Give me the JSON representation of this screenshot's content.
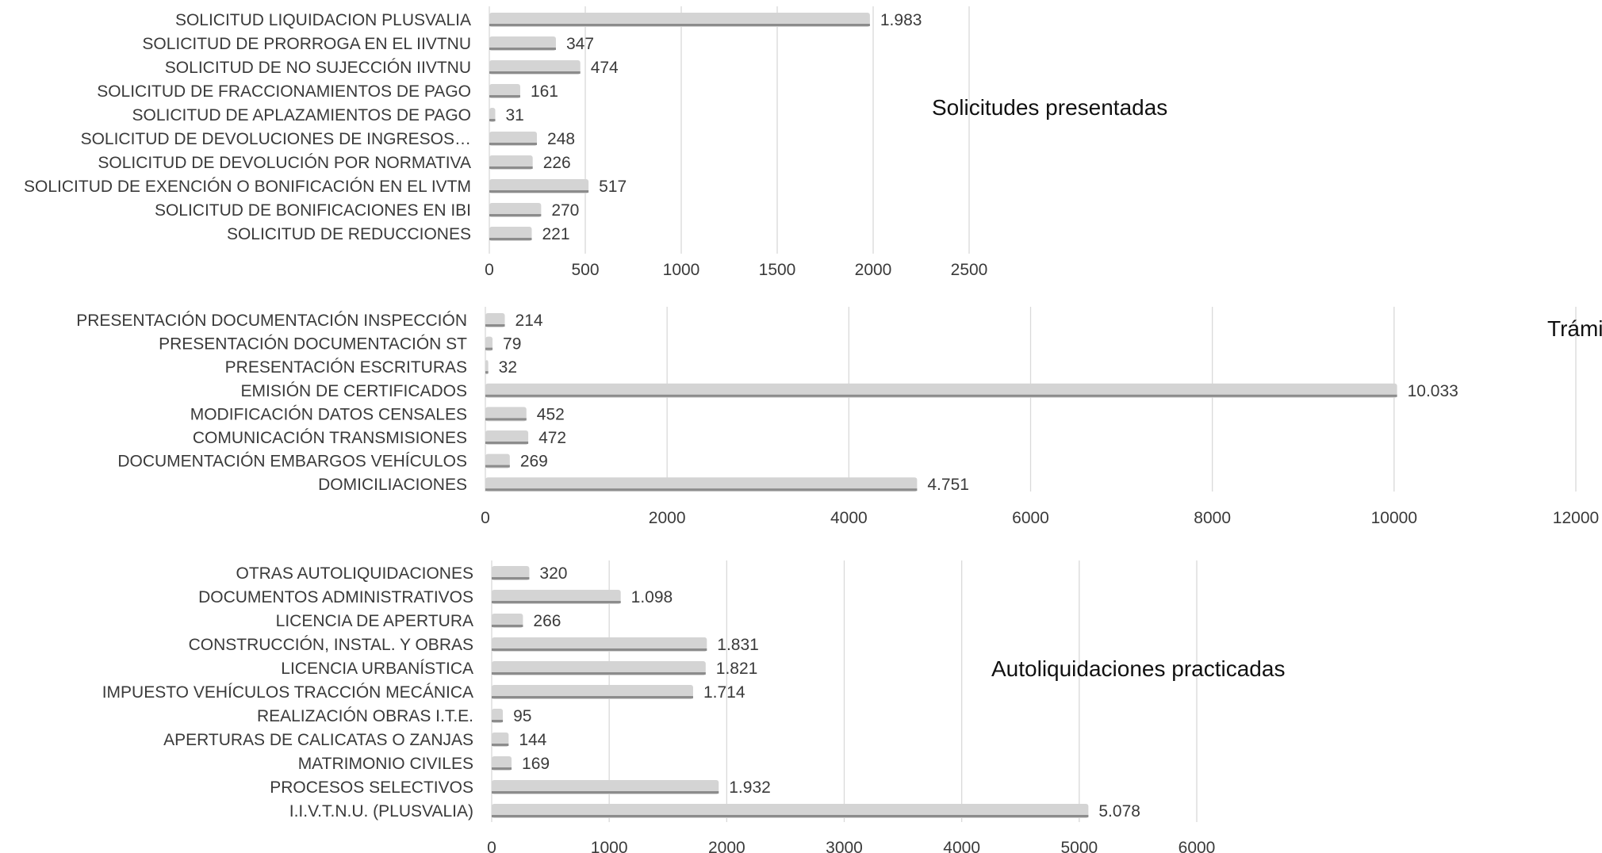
{
  "chart_data": [
    {
      "type": "bar",
      "orientation": "horizontal",
      "title": "Solicitudes presentadas",
      "categories": [
        "SOLICITUD LIQUIDACION PLUSVALIA",
        "SOLICITUD DE PRORROGA EN EL IIVTNU",
        "SOLICITUD DE NO SUJECCIÓN IIVTNU",
        "SOLICITUD DE FRACCIONAMIENTOS DE PAGO",
        "SOLICITUD DE APLAZAMIENTOS DE PAGO",
        "SOLICITUD DE DEVOLUCIONES DE INGRESOS…",
        "SOLICITUD DE DEVOLUCIÓN POR NORMATIVA",
        "SOLICITUD DE EXENCIÓN O BONIFICACIÓN EN EL IVTM",
        "SOLICITUD DE BONIFICACIONES EN IBI",
        "SOLICITUD DE REDUCCIONES"
      ],
      "values": [
        1983,
        347,
        474,
        161,
        31,
        248,
        226,
        517,
        270,
        221
      ],
      "value_labels": [
        "1.983",
        "347",
        "474",
        "161",
        "31",
        "248",
        "226",
        "517",
        "270",
        "221"
      ],
      "xlim": [
        0,
        2500
      ],
      "xticks": [
        "0",
        "500",
        "1000",
        "1500",
        "2000",
        "2500"
      ],
      "grid": true
    },
    {
      "type": "bar",
      "orientation": "horizontal",
      "title": "Trámites realizados",
      "categories": [
        "PRESENTACIÓN DOCUMENTACIÓN INSPECCIÓN",
        "PRESENTACIÓN DOCUMENTACIÓN ST",
        "PRESENTACIÓN ESCRITURAS",
        "EMISIÓN DE CERTIFICADOS",
        "MODIFICACIÓN DATOS CENSALES",
        "COMUNICACIÓN TRANSMISIONES",
        "DOCUMENTACIÓN EMBARGOS VEHÍCULOS",
        "DOMICILIACIONES"
      ],
      "values": [
        214,
        79,
        32,
        10033,
        452,
        472,
        269,
        4751
      ],
      "value_labels": [
        "214",
        "79",
        "32",
        "10.033",
        "452",
        "472",
        "269",
        "4.751"
      ],
      "xlim": [
        0,
        12000
      ],
      "xticks": [
        "0",
        "2000",
        "4000",
        "6000",
        "8000",
        "10000",
        "12000"
      ],
      "grid": true
    },
    {
      "type": "bar",
      "orientation": "horizontal",
      "title": "Autoliquidaciones practicadas",
      "categories": [
        "OTRAS AUTOLIQUIDACIONES",
        "DOCUMENTOS ADMINISTRATIVOS",
        "LICENCIA DE APERTURA",
        "CONSTRUCCIÓN, INSTAL. Y OBRAS",
        "LICENCIA URBANÍSTICA",
        "IMPUESTO VEHÍCULOS TRACCIÓN MECÁNICA",
        "REALIZACIÓN OBRAS I.T.E.",
        "APERTURAS DE CALICATAS O ZANJAS",
        "MATRIMONIO CIVILES",
        "PROCESOS SELECTIVOS",
        "I.I.V.T.N.U. (PLUSVALIA)"
      ],
      "values": [
        320,
        1098,
        266,
        1831,
        1821,
        1714,
        95,
        144,
        169,
        1932,
        5078
      ],
      "value_labels": [
        "320",
        "1.098",
        "266",
        "1.831",
        "1.821",
        "1.714",
        "95",
        "144",
        "169",
        "1.932",
        "5.078"
      ],
      "xlim": [
        0,
        6000
      ],
      "xticks": [
        "0",
        "1000",
        "2000",
        "3000",
        "4000",
        "5000",
        "6000"
      ],
      "grid": true
    }
  ],
  "colors": {
    "bar_fill": "#d4d4d4",
    "bar_shade": "#8c8c8c",
    "gridline": "#d9d9d9",
    "text": "#3a3a3a",
    "title": "#111111"
  }
}
